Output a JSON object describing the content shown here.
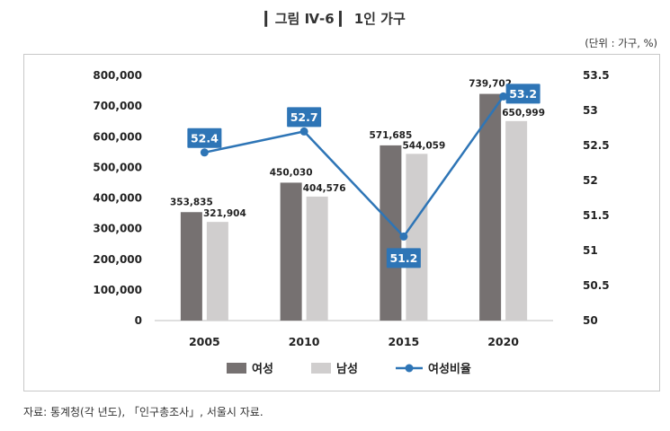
{
  "header": {
    "title": "▎그림 Ⅳ-6 ▎ 1인 가구",
    "unit": "(단위 : 가구, %)"
  },
  "source": "자료: 통계청(각 년도), 「인구총조사」, 서울시 자료.",
  "colors": {
    "female": "#767171",
    "male": "#d0cece",
    "ratio": "#2e75b6",
    "label_bg": "#2e75b6"
  },
  "chart_data": {
    "type": "bar",
    "categories": [
      "2005",
      "2010",
      "2015",
      "2020"
    ],
    "series": [
      {
        "name": "여성",
        "kind": "bar",
        "values": [
          353835,
          450030,
          571685,
          739702
        ],
        "labels": [
          "353,835",
          "450,030",
          "571,685",
          "739,702"
        ]
      },
      {
        "name": "남성",
        "kind": "bar",
        "values": [
          321904,
          404576,
          544059,
          650999
        ],
        "labels": [
          "321,904",
          "404,576",
          "544,059",
          "650,999"
        ]
      },
      {
        "name": "여성비율",
        "kind": "line",
        "axis": "right",
        "values": [
          52.4,
          52.7,
          51.2,
          53.2
        ],
        "labels": [
          "52.4",
          "52.7",
          "51.2",
          "53.2"
        ]
      }
    ],
    "y_left": {
      "ylim": [
        0,
        800000
      ],
      "ticks": [
        "0",
        "100,000",
        "200,000",
        "300,000",
        "400,000",
        "500,000",
        "600,000",
        "700,000",
        "800,000"
      ]
    },
    "y_right": {
      "ylim": [
        50,
        53.5
      ],
      "ticks": [
        "50",
        "50.5",
        "51",
        "51.5",
        "52",
        "52.5",
        "53",
        "53.5"
      ]
    },
    "grid": false,
    "legend": "bottom"
  }
}
